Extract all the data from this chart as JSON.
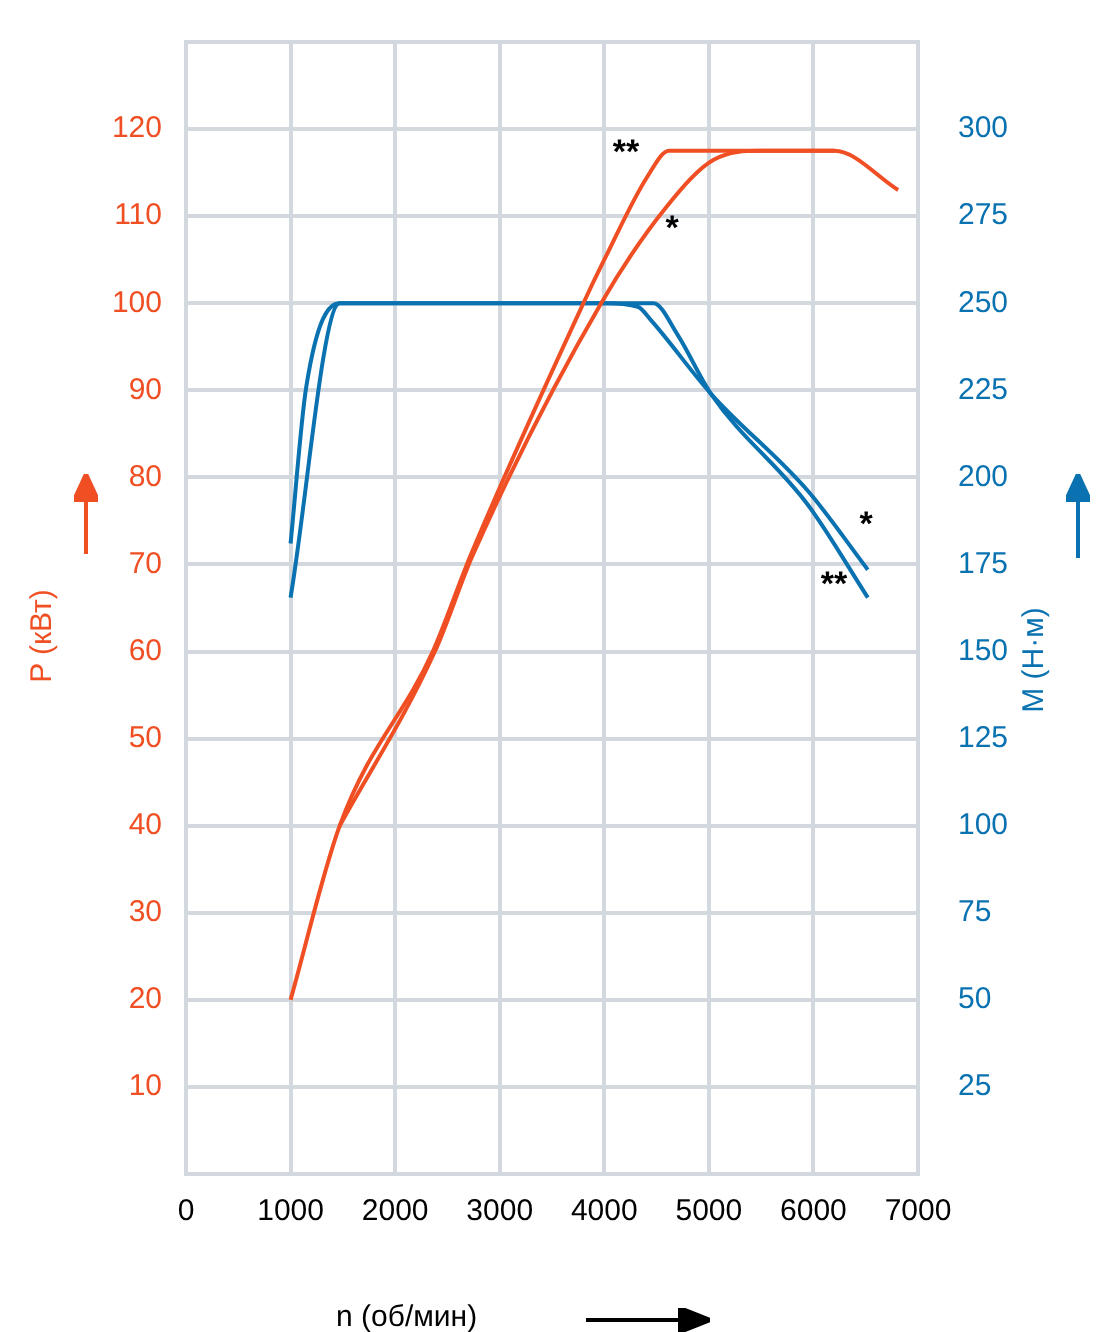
{
  "chart_data": {
    "type": "line",
    "xlabel": "n (об/мин)",
    "ylabel": "P (кВт)",
    "y2label": "М (Н·м)",
    "xlim": [
      0,
      7000
    ],
    "xticks": [
      0,
      1000,
      2000,
      3000,
      4000,
      5000,
      6000,
      7000
    ],
    "ylim": [
      0,
      130
    ],
    "yticks": [
      10,
      20,
      30,
      40,
      50,
      60,
      70,
      80,
      90,
      100,
      110,
      120
    ],
    "y2lim": [
      0,
      325
    ],
    "y2ticks": [
      25,
      50,
      75,
      100,
      125,
      150,
      175,
      200,
      225,
      250,
      275,
      300
    ],
    "grid": true,
    "legend": false,
    "marker": "none",
    "line_style": "solid",
    "series": [
      {
        "color": "#f04e23",
        "x": [
          1000,
          1470,
          2360,
          2720,
          3800,
          4000,
          4410,
          4620,
          6200,
          6810
        ],
        "values": [
          20,
          40,
          60,
          71,
          100,
          105,
          114.5,
          117.5,
          117.5,
          113
        ]
      },
      {
        "color": "#f04e23",
        "x": [
          1470,
          2380,
          2740,
          3970,
          4590,
          5050,
          5500,
          6200
        ],
        "values": [
          40,
          60,
          71,
          100,
          111,
          116.5,
          117.5,
          117.5
        ]
      },
      {
        "color": "#0a72b0",
        "axis": "y2",
        "x": [
          1000,
          1150,
          1470,
          3990,
          4320,
          4450,
          5020,
          5950,
          6520
        ],
        "values": [
          181,
          226,
          250,
          250,
          249,
          245,
          224,
          196,
          173.5
        ]
      },
      {
        "color": "#0a72b0",
        "axis": "y2",
        "x": [
          1000,
          1470,
          4470,
          4700,
          5020,
          5950,
          6520
        ],
        "values": [
          165.5,
          250,
          250,
          241,
          224,
          192,
          165.5
        ]
      }
    ],
    "annotations": [
      "**",
      "*",
      "*",
      "**"
    ]
  }
}
